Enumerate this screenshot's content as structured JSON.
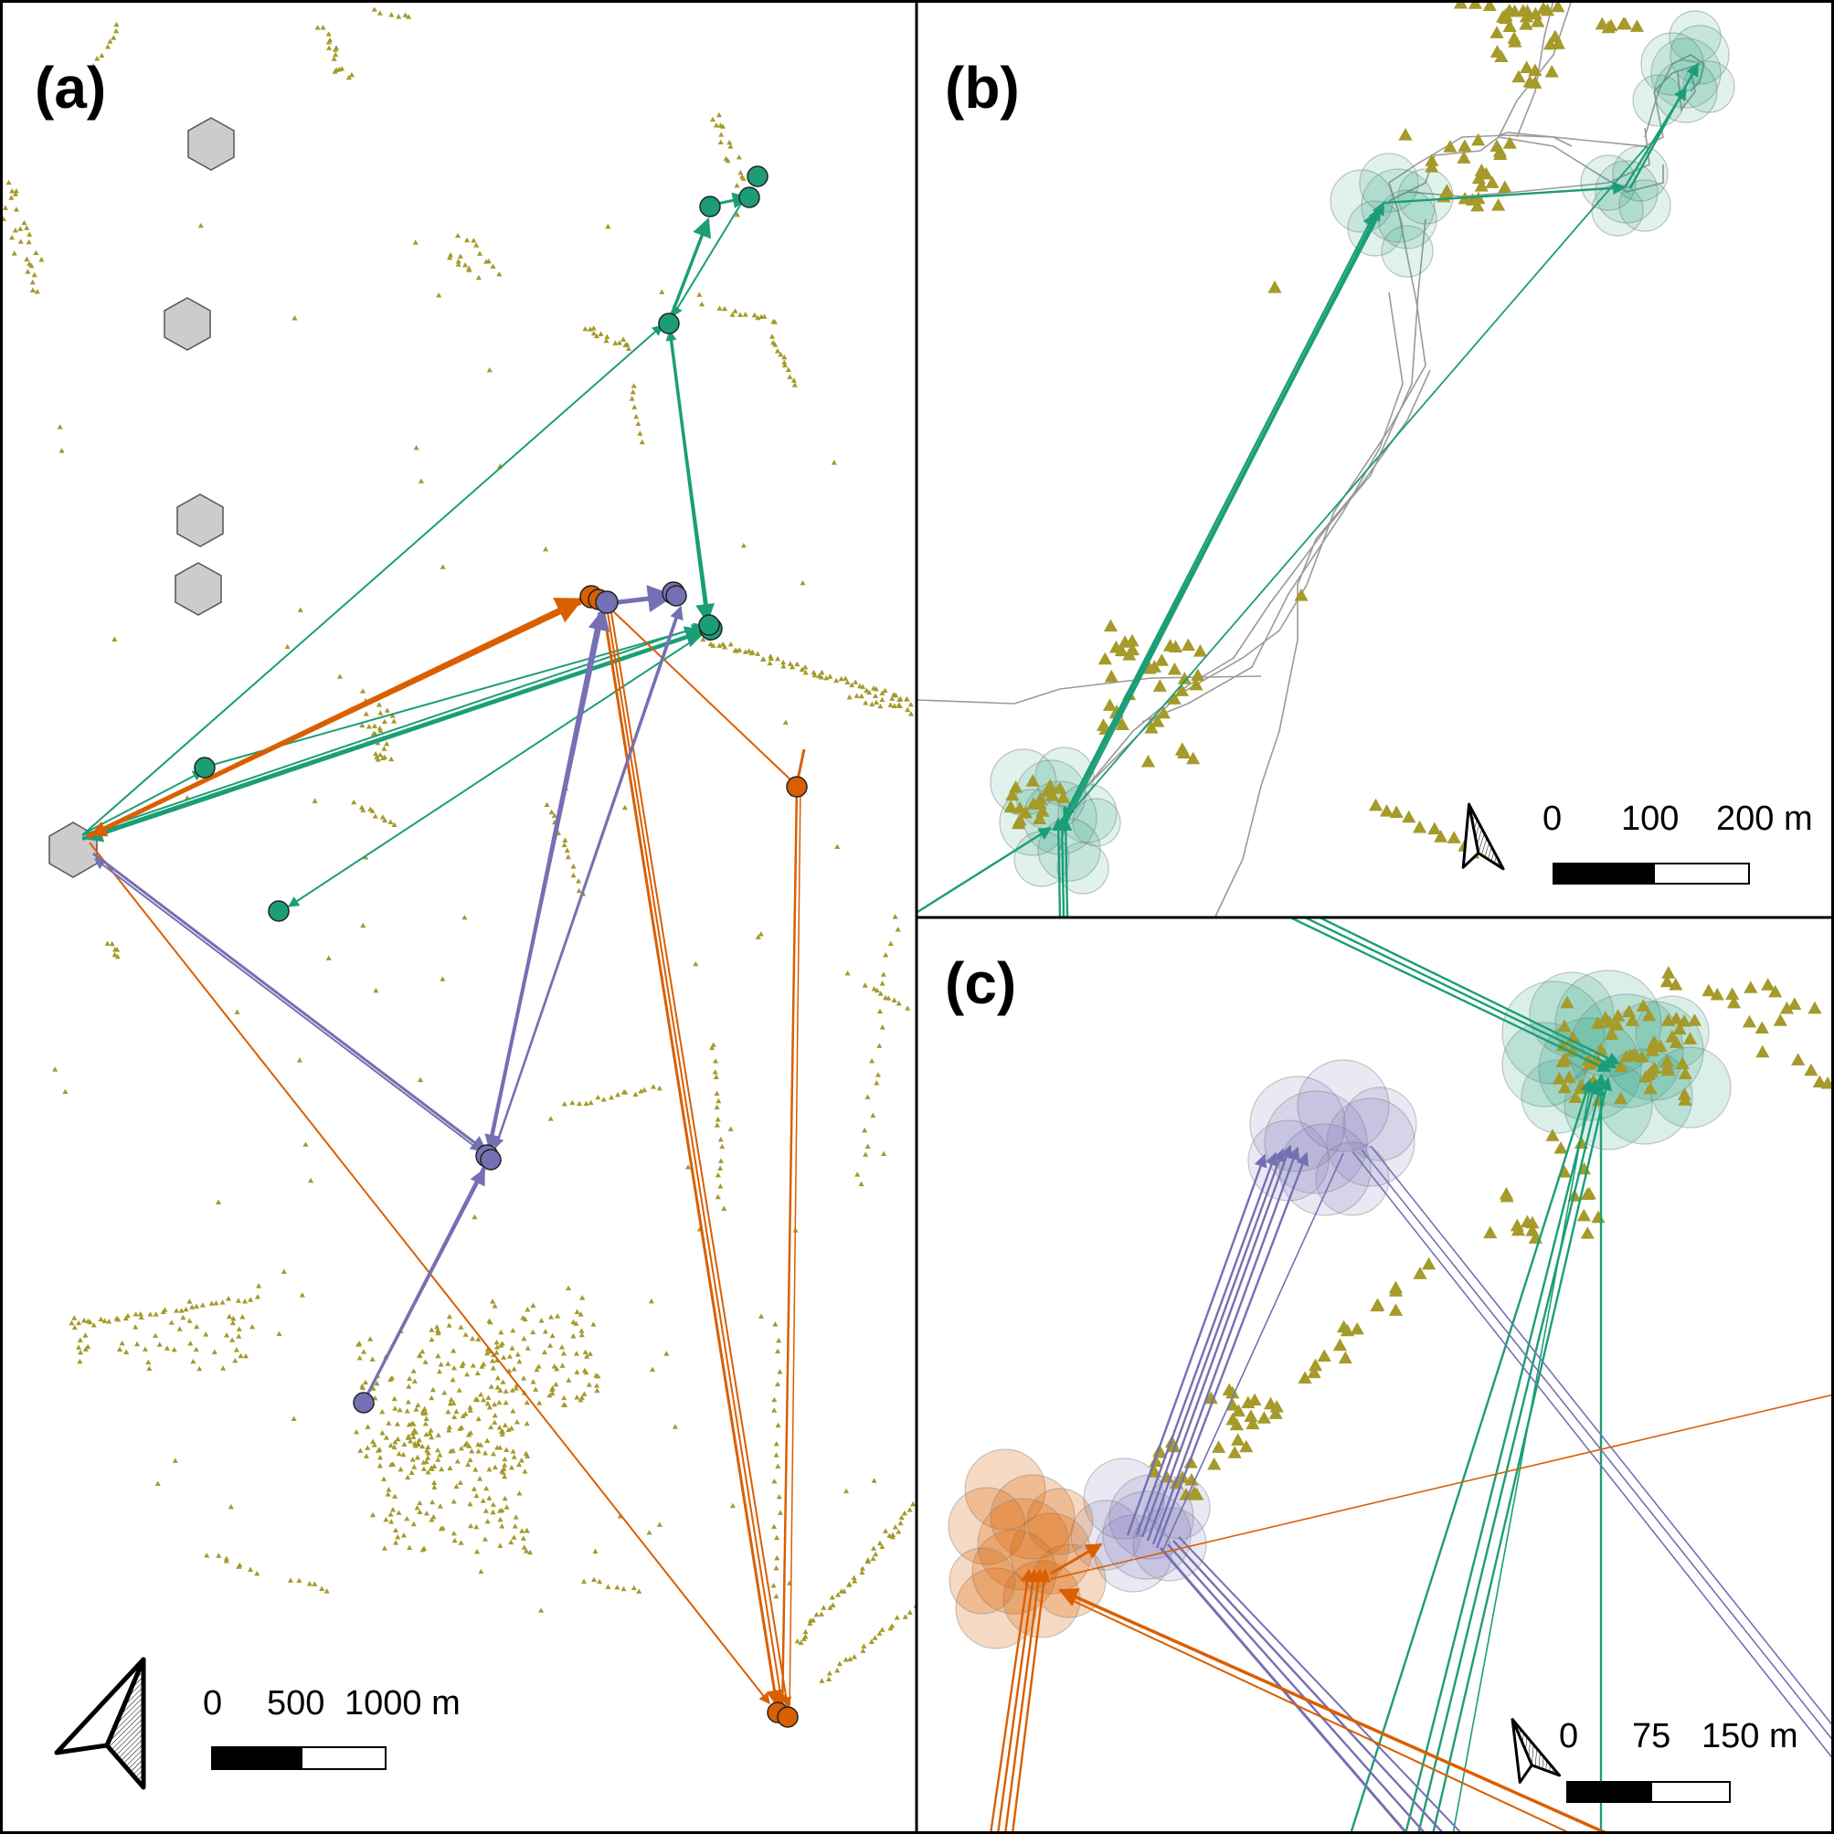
{
  "panels": {
    "a": {
      "label": "(a)",
      "scale_ticks": [
        "0",
        "500",
        "1000 m"
      ]
    },
    "b": {
      "label": "(b)",
      "scale_ticks": [
        "0",
        "100",
        "200 m"
      ]
    },
    "c": {
      "label": "(c)",
      "scale_ticks": [
        "0",
        "75",
        "150 m"
      ]
    }
  },
  "colors": {
    "green": "#1b9e77",
    "orange": "#d95f02",
    "purple": "#7570b3",
    "vegetation": "#a59a2a",
    "hexagon": "#cccccc",
    "frame": "#000000",
    "track": "#9a9a9a"
  },
  "icons": [
    "north-arrow-icon",
    "triangle-marker",
    "hexagon-marker",
    "circle-marker"
  ]
}
